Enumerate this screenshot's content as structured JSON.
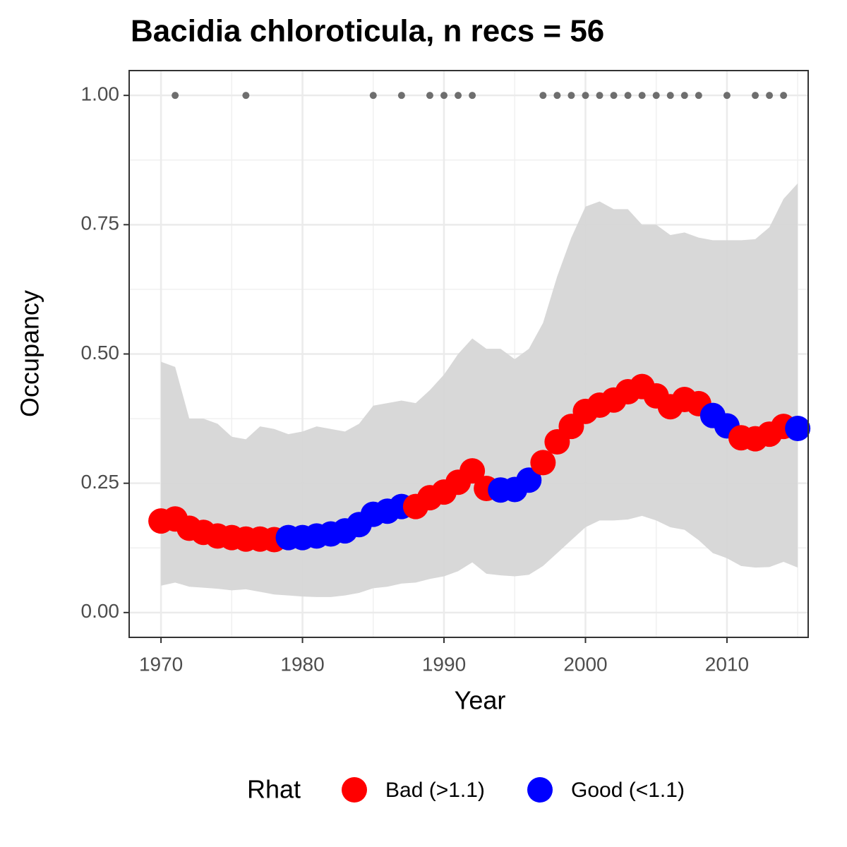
{
  "chart_data": {
    "type": "scatter",
    "title": "Bacidia chloroticula, n recs = 56",
    "x_label": "Year",
    "y_label": "Occupancy",
    "legend_title": "Rhat",
    "x": [
      1970,
      1971,
      1972,
      1973,
      1974,
      1975,
      1976,
      1977,
      1978,
      1979,
      1980,
      1981,
      1982,
      1983,
      1984,
      1985,
      1986,
      1987,
      1988,
      1989,
      1990,
      1991,
      1992,
      1993,
      1994,
      1995,
      1996,
      1997,
      1998,
      1999,
      2000,
      2001,
      2002,
      2003,
      2004,
      2005,
      2006,
      2007,
      2008,
      2009,
      2010,
      2011,
      2012,
      2013,
      2014,
      2015
    ],
    "series": [
      {
        "name": "Bad (>1.1)",
        "color": "#ff0000",
        "values": [
          0.177,
          0.181,
          0.163,
          0.155,
          0.148,
          0.145,
          0.142,
          0.142,
          0.141,
          null,
          null,
          null,
          null,
          null,
          null,
          null,
          null,
          null,
          0.205,
          0.222,
          0.233,
          0.252,
          0.274,
          0.24,
          null,
          null,
          null,
          0.29,
          0.33,
          0.36,
          0.389,
          0.401,
          0.411,
          0.427,
          0.437,
          0.419,
          0.398,
          0.412,
          0.404,
          null,
          null,
          0.338,
          0.336,
          0.345,
          0.36,
          null
        ]
      },
      {
        "name": "Good (<1.1)",
        "color": "#0000ff",
        "values": [
          null,
          null,
          null,
          null,
          null,
          null,
          null,
          null,
          null,
          0.145,
          0.145,
          0.148,
          0.152,
          0.158,
          0.17,
          0.19,
          0.196,
          0.205,
          null,
          null,
          null,
          null,
          null,
          null,
          0.237,
          0.238,
          0.256,
          null,
          null,
          null,
          null,
          null,
          null,
          null,
          null,
          null,
          null,
          null,
          null,
          0.381,
          0.361,
          null,
          null,
          null,
          null,
          0.356
        ]
      }
    ],
    "upper": [
      0.485,
      0.475,
      0.375,
      0.375,
      0.365,
      0.34,
      0.335,
      0.36,
      0.355,
      0.345,
      0.35,
      0.36,
      0.355,
      0.35,
      0.365,
      0.4,
      0.405,
      0.41,
      0.405,
      0.43,
      0.46,
      0.5,
      0.53,
      0.51,
      0.51,
      0.49,
      0.51,
      0.56,
      0.65,
      0.725,
      0.785,
      0.795,
      0.78,
      0.78,
      0.75,
      0.75,
      0.73,
      0.735,
      0.725,
      0.72,
      0.72,
      0.72,
      0.722,
      0.745,
      0.8,
      0.83
    ],
    "lower": [
      0.052,
      0.058,
      0.05,
      0.048,
      0.046,
      0.043,
      0.045,
      0.04,
      0.035,
      0.033,
      0.031,
      0.03,
      0.03,
      0.033,
      0.038,
      0.047,
      0.05,
      0.056,
      0.058,
      0.065,
      0.07,
      0.08,
      0.097,
      0.075,
      0.072,
      0.07,
      0.073,
      0.09,
      0.115,
      0.14,
      0.165,
      0.178,
      0.178,
      0.18,
      0.187,
      0.178,
      0.165,
      0.16,
      0.14,
      0.115,
      0.105,
      0.09,
      0.087,
      0.088,
      0.098,
      0.087
    ],
    "ribbon_color": "#d6d6d6",
    "records": {
      "color": "#6e6e6e",
      "x": [
        1971,
        1976,
        1985,
        1987,
        1989,
        1990,
        1991,
        1992,
        1997,
        1998,
        1999,
        2000,
        2001,
        2002,
        2003,
        2004,
        2005,
        2006,
        2007,
        2008,
        2010,
        2012,
        2013,
        2014
      ],
      "values": [
        1,
        1,
        1,
        1,
        1,
        1,
        1,
        1,
        1,
        1,
        1,
        1,
        1,
        1,
        1,
        1,
        1,
        1,
        1,
        1,
        1,
        1,
        1,
        1
      ]
    },
    "xlim": [
      1967.75,
      2015.74
    ],
    "ylim": [
      -0.048,
      1.048
    ],
    "xticks": [
      1970,
      1980,
      1990,
      2000,
      2010
    ],
    "yticks": [
      {
        "value": 0,
        "label": "0.00"
      },
      {
        "value": 0.25,
        "label": "0.25"
      },
      {
        "value": 0.5,
        "label": "0.50"
      },
      {
        "value": 0.75,
        "label": "0.75"
      },
      {
        "value": 1,
        "label": "1.00"
      }
    ],
    "grid": true
  }
}
